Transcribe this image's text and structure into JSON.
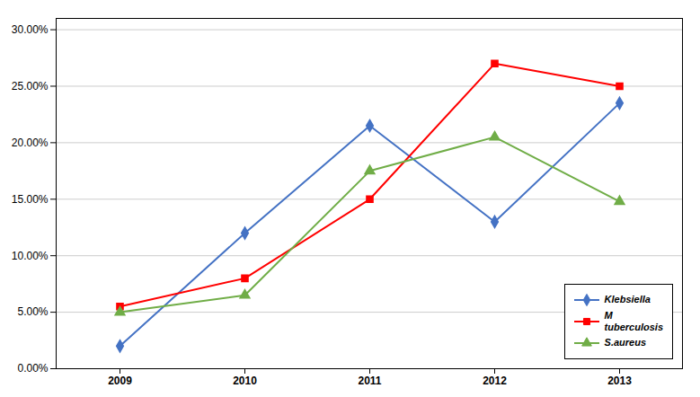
{
  "chart_data": {
    "type": "line",
    "categories": [
      "2009",
      "2010",
      "2011",
      "2012",
      "2013"
    ],
    "series": [
      {
        "name": "Klebsiella",
        "color": "#4472C4",
        "marker": "diamond",
        "values": [
          0.02,
          0.12,
          0.215,
          0.13,
          0.235
        ]
      },
      {
        "name": "M\ntuberculosis",
        "color": "#FF0000",
        "marker": "square",
        "values": [
          0.055,
          0.08,
          0.15,
          0.27,
          0.25
        ]
      },
      {
        "name": "S.aureus",
        "color": "#70AD47",
        "marker": "triangle",
        "values": [
          0.05,
          0.065,
          0.175,
          0.205,
          0.148
        ]
      }
    ],
    "ylim": [
      0.0,
      0.31
    ],
    "yticks": [
      {
        "value": 0.0,
        "label": "0.00%"
      },
      {
        "value": 0.05,
        "label": "5.00%"
      },
      {
        "value": 0.1,
        "label": "10.00%"
      },
      {
        "value": 0.15,
        "label": "15.00%"
      },
      {
        "value": 0.2,
        "label": "20.00%"
      },
      {
        "value": 0.25,
        "label": "25.00%"
      },
      {
        "value": 0.3,
        "label": "30.00%"
      }
    ],
    "grid": true,
    "legend": "lower right"
  }
}
